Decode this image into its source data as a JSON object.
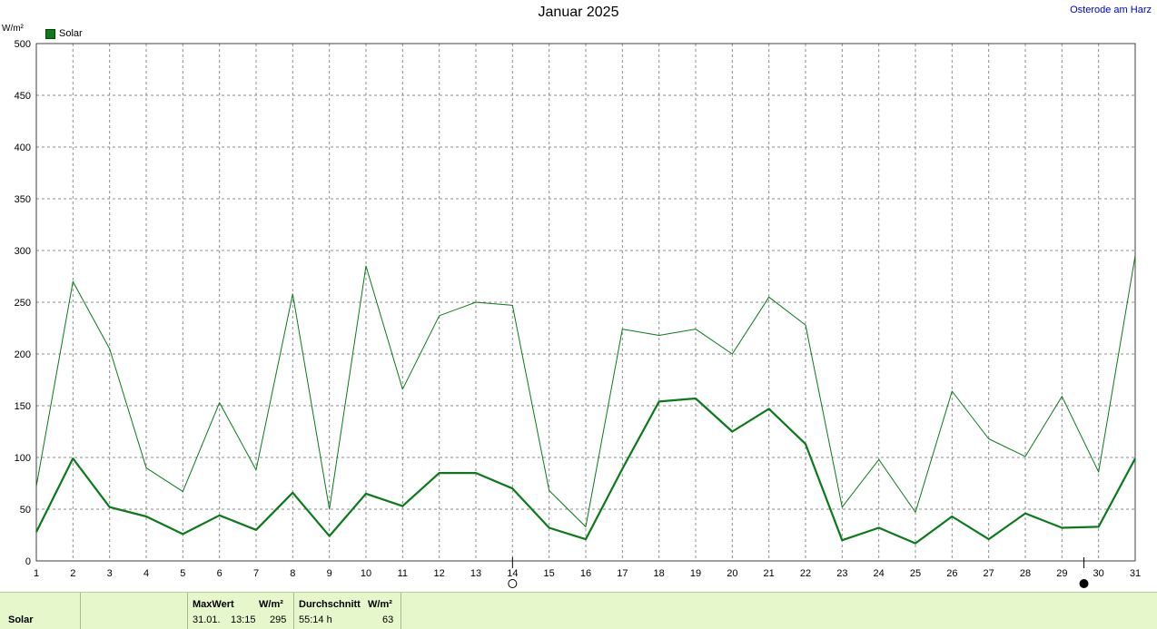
{
  "title": "Januar 2025",
  "location": "Osterode am Harz",
  "unit": "W/m²",
  "legend_label": "Solar",
  "footer": {
    "series_name": "Solar",
    "max_header": "MaxWert",
    "max_unit": "W/m²",
    "max_date": "31.01.",
    "max_time": "13:15",
    "max_value": "295",
    "avg_header": "Durchschnitt",
    "avg_unit": "W/m²",
    "avg_duration": "55:14 h",
    "avg_value": "63"
  },
  "chart_data": {
    "type": "line",
    "title": "Januar 2025",
    "xlabel": "",
    "ylabel": "W/m²",
    "x": [
      1,
      2,
      3,
      4,
      5,
      6,
      7,
      8,
      9,
      10,
      11,
      12,
      13,
      14,
      15,
      16,
      17,
      18,
      19,
      20,
      21,
      22,
      23,
      24,
      25,
      26,
      27,
      28,
      29,
      30,
      31
    ],
    "xlim": [
      1,
      31
    ],
    "ylim": [
      0,
      500
    ],
    "yticks": [
      0,
      50,
      100,
      150,
      200,
      250,
      300,
      350,
      400,
      450,
      500
    ],
    "grid": true,
    "legend": "top-left",
    "series": [
      {
        "name": "Solar",
        "role": "max",
        "color": "#0a7a1a",
        "values": [
          72,
          270,
          205,
          90,
          67,
          153,
          88,
          258,
          50,
          285,
          166,
          237,
          250,
          247,
          68,
          33,
          224,
          218,
          224,
          200,
          255,
          228,
          52,
          98,
          47,
          164,
          118,
          101,
          159,
          86,
          295
        ]
      },
      {
        "name": "Solar",
        "role": "mean",
        "color": "#0a7a1a",
        "values": [
          28,
          99,
          52,
          43,
          26,
          44,
          30,
          66,
          24,
          65,
          53,
          85,
          85,
          70,
          32,
          21,
          89,
          154,
          157,
          125,
          147,
          113,
          20,
          32,
          17,
          43,
          21,
          46,
          32,
          33,
          99
        ]
      }
    ],
    "markers": [
      {
        "x": 14,
        "symbol": "open-circle"
      },
      {
        "x": 29.6,
        "symbol": "filled-circle"
      }
    ]
  }
}
